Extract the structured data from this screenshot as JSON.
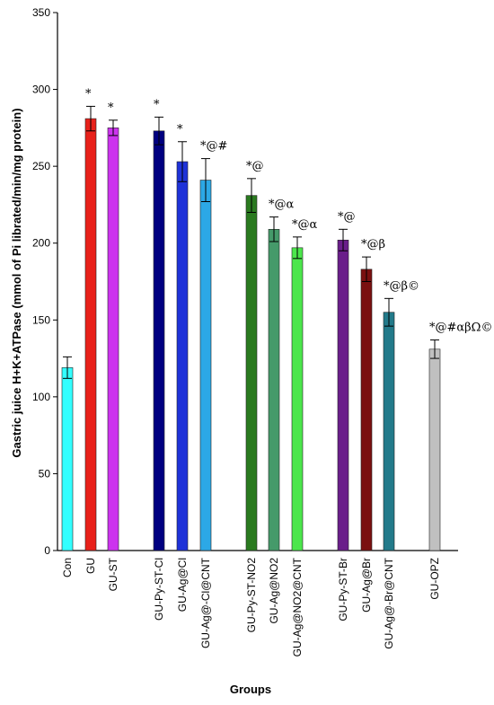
{
  "chart_data": {
    "type": "bar",
    "xlabel": "Groups",
    "ylabel": "Gastric juice H+K+ATPase (mmol of Pi librated/min/mg protein)",
    "ylim": [
      0,
      350
    ],
    "yticks": [
      0,
      50,
      100,
      150,
      200,
      250,
      300,
      350
    ],
    "grid": false,
    "categories": [
      "Con",
      "GU",
      "GU-ST",
      "GU-Py-ST-Cl",
      "GU-Ag@Cl",
      "GU-Ag@-Cl@CNT",
      "GU-Py-ST-NO2",
      "GU-Ag@NO2",
      "GU-Ag@NO2@CNT",
      "GU-Py-ST-Br",
      "GU-Ag@Br",
      "GU-Ag@-Br@CNT",
      "GU-OPZ"
    ],
    "values": [
      119,
      281,
      275,
      273,
      253,
      241,
      231,
      209,
      197,
      202,
      183,
      155,
      131
    ],
    "errors": [
      7,
      8,
      5,
      9,
      13,
      14,
      11,
      8,
      7,
      7,
      8,
      9,
      6
    ],
    "annotations": [
      "",
      "*",
      "*",
      "*",
      "*",
      "*@#",
      "*@",
      "*@α",
      "*@α",
      "*@",
      "*@β",
      "*@β©",
      "*@#αβΩ©"
    ],
    "colors": [
      "#33FFFF",
      "#E8211A",
      "#CC33EE",
      "#000080",
      "#1E32D8",
      "#2CA8E6",
      "#2A7A1F",
      "#459A6A",
      "#4CE64C",
      "#6A1E8A",
      "#7A1010",
      "#237A8A",
      "#C0C0C0"
    ]
  }
}
